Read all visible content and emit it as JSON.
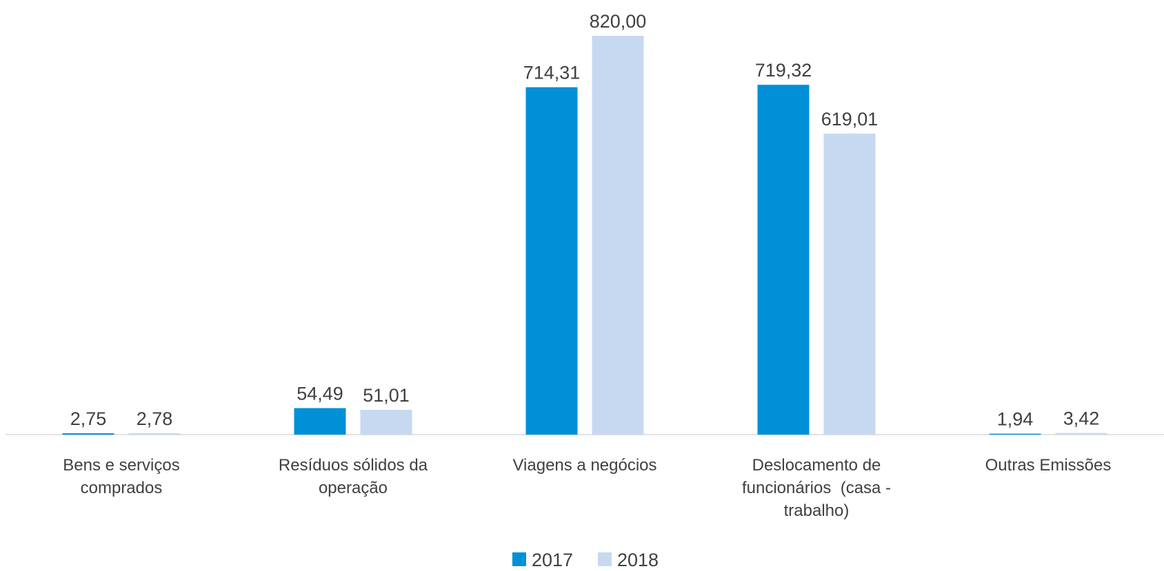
{
  "chart_data": {
    "type": "bar",
    "categories": [
      "Bens e serviços comprados",
      "Resíduos sólidos da operação",
      "Viagens a negócios",
      "Deslocamento de funcionários  (casa - trabalho)",
      "Outras Emissões"
    ],
    "series": [
      {
        "name": "2017",
        "color": "#0090d8",
        "values": [
          2.75,
          54.49,
          714.31,
          719.32,
          1.94
        ],
        "value_labels": [
          "2,75",
          "54,49",
          "714,31",
          "719,32",
          "1,94"
        ]
      },
      {
        "name": "2018",
        "color": "#c6d9f0",
        "values": [
          2.78,
          51.01,
          820.0,
          619.01,
          3.42
        ],
        "value_labels": [
          "2,78",
          "51,01",
          "820,00",
          "619,01",
          "3,42"
        ]
      }
    ],
    "legend": "bottom"
  }
}
